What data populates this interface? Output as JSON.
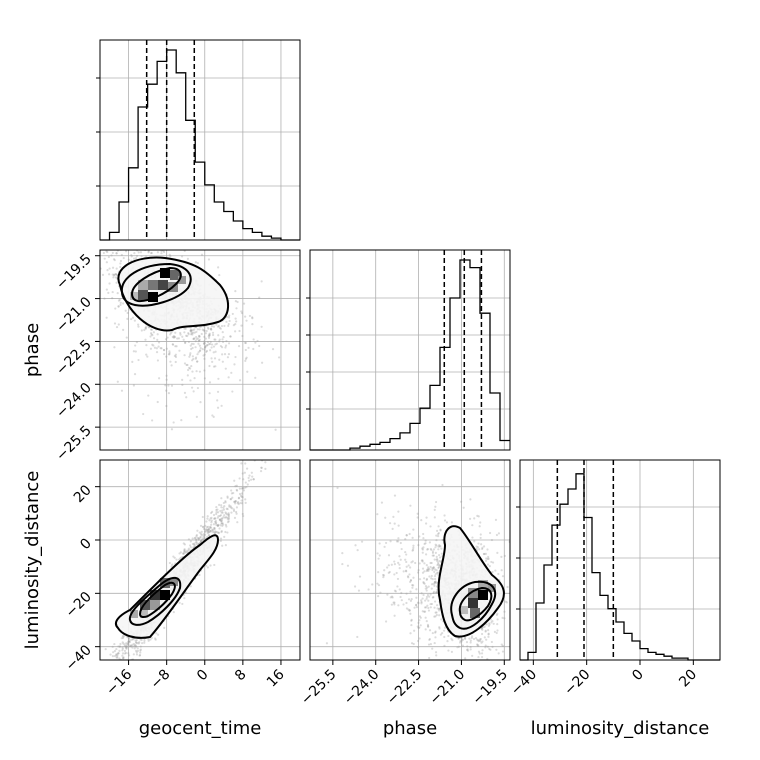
{
  "chart_data": {
    "type": "corner",
    "parameters": [
      "geocent_time",
      "phase",
      "luminosity_distance"
    ],
    "ranges": {
      "geocent_time": [
        -22,
        20
      ],
      "phase": [
        -26.3,
        -19.3
      ],
      "luminosity_distance": [
        -45,
        30
      ]
    },
    "ticks": {
      "geocent_time": [
        -16,
        -8,
        0,
        8,
        16
      ],
      "phase": [
        -25.5,
        -24.0,
        -22.5,
        -21.0,
        -19.5
      ],
      "luminosity_distance": [
        -40,
        -20,
        0,
        20
      ]
    },
    "tick_labels": {
      "geocent_time": [
        "−16",
        "−8",
        "0",
        "8",
        "16"
      ],
      "phase": [
        "−25.5",
        "−24.0",
        "−22.5",
        "−21.0",
        "−19.5"
      ],
      "luminosity_distance": [
        "−40",
        "−20",
        "0",
        "20"
      ]
    },
    "quantiles": {
      "geocent_time": [
        -12.2,
        -8.0,
        -2.2
      ],
      "phase": [
        -21.6,
        -20.9,
        -20.3
      ],
      "luminosity_distance": [
        -31,
        -21,
        -10
      ]
    },
    "histograms": {
      "geocent_time": {
        "edges_start": -22,
        "bin_width": 2,
        "counts": [
          0,
          0.04,
          0.2,
          0.38,
          0.7,
          0.82,
          0.94,
          1.0,
          0.88,
          0.63,
          0.41,
          0.29,
          0.2,
          0.15,
          0.1,
          0.06,
          0.04,
          0.02,
          0.01,
          0,
          0
        ]
      },
      "phase": {
        "edges_start": -26.3,
        "bin_width": 0.35,
        "counts": [
          0,
          0,
          0,
          0,
          0.01,
          0.02,
          0.03,
          0.04,
          0.06,
          0.09,
          0.14,
          0.22,
          0.34,
          0.54,
          0.8,
          1.0,
          0.96,
          0.72,
          0.3,
          0.05
        ]
      },
      "luminosity_distance": {
        "edges_start": -45,
        "bin_width": 3,
        "counts": [
          0,
          0.04,
          0.3,
          0.5,
          0.71,
          0.82,
          0.9,
          0.98,
          0.75,
          0.46,
          0.34,
          0.27,
          0.2,
          0.14,
          0.1,
          0.06,
          0.04,
          0.03,
          0.02,
          0.01,
          0.01,
          0,
          0,
          0,
          0
        ]
      }
    },
    "density_2d": {
      "phase_vs_geocent_time": {
        "correlation": -0.35
      },
      "luminosity_distance_vs_geocent_time": {
        "correlation": 0.93
      },
      "luminosity_distance_vs_phase": {
        "correlation": -0.45
      }
    },
    "grid": true
  }
}
